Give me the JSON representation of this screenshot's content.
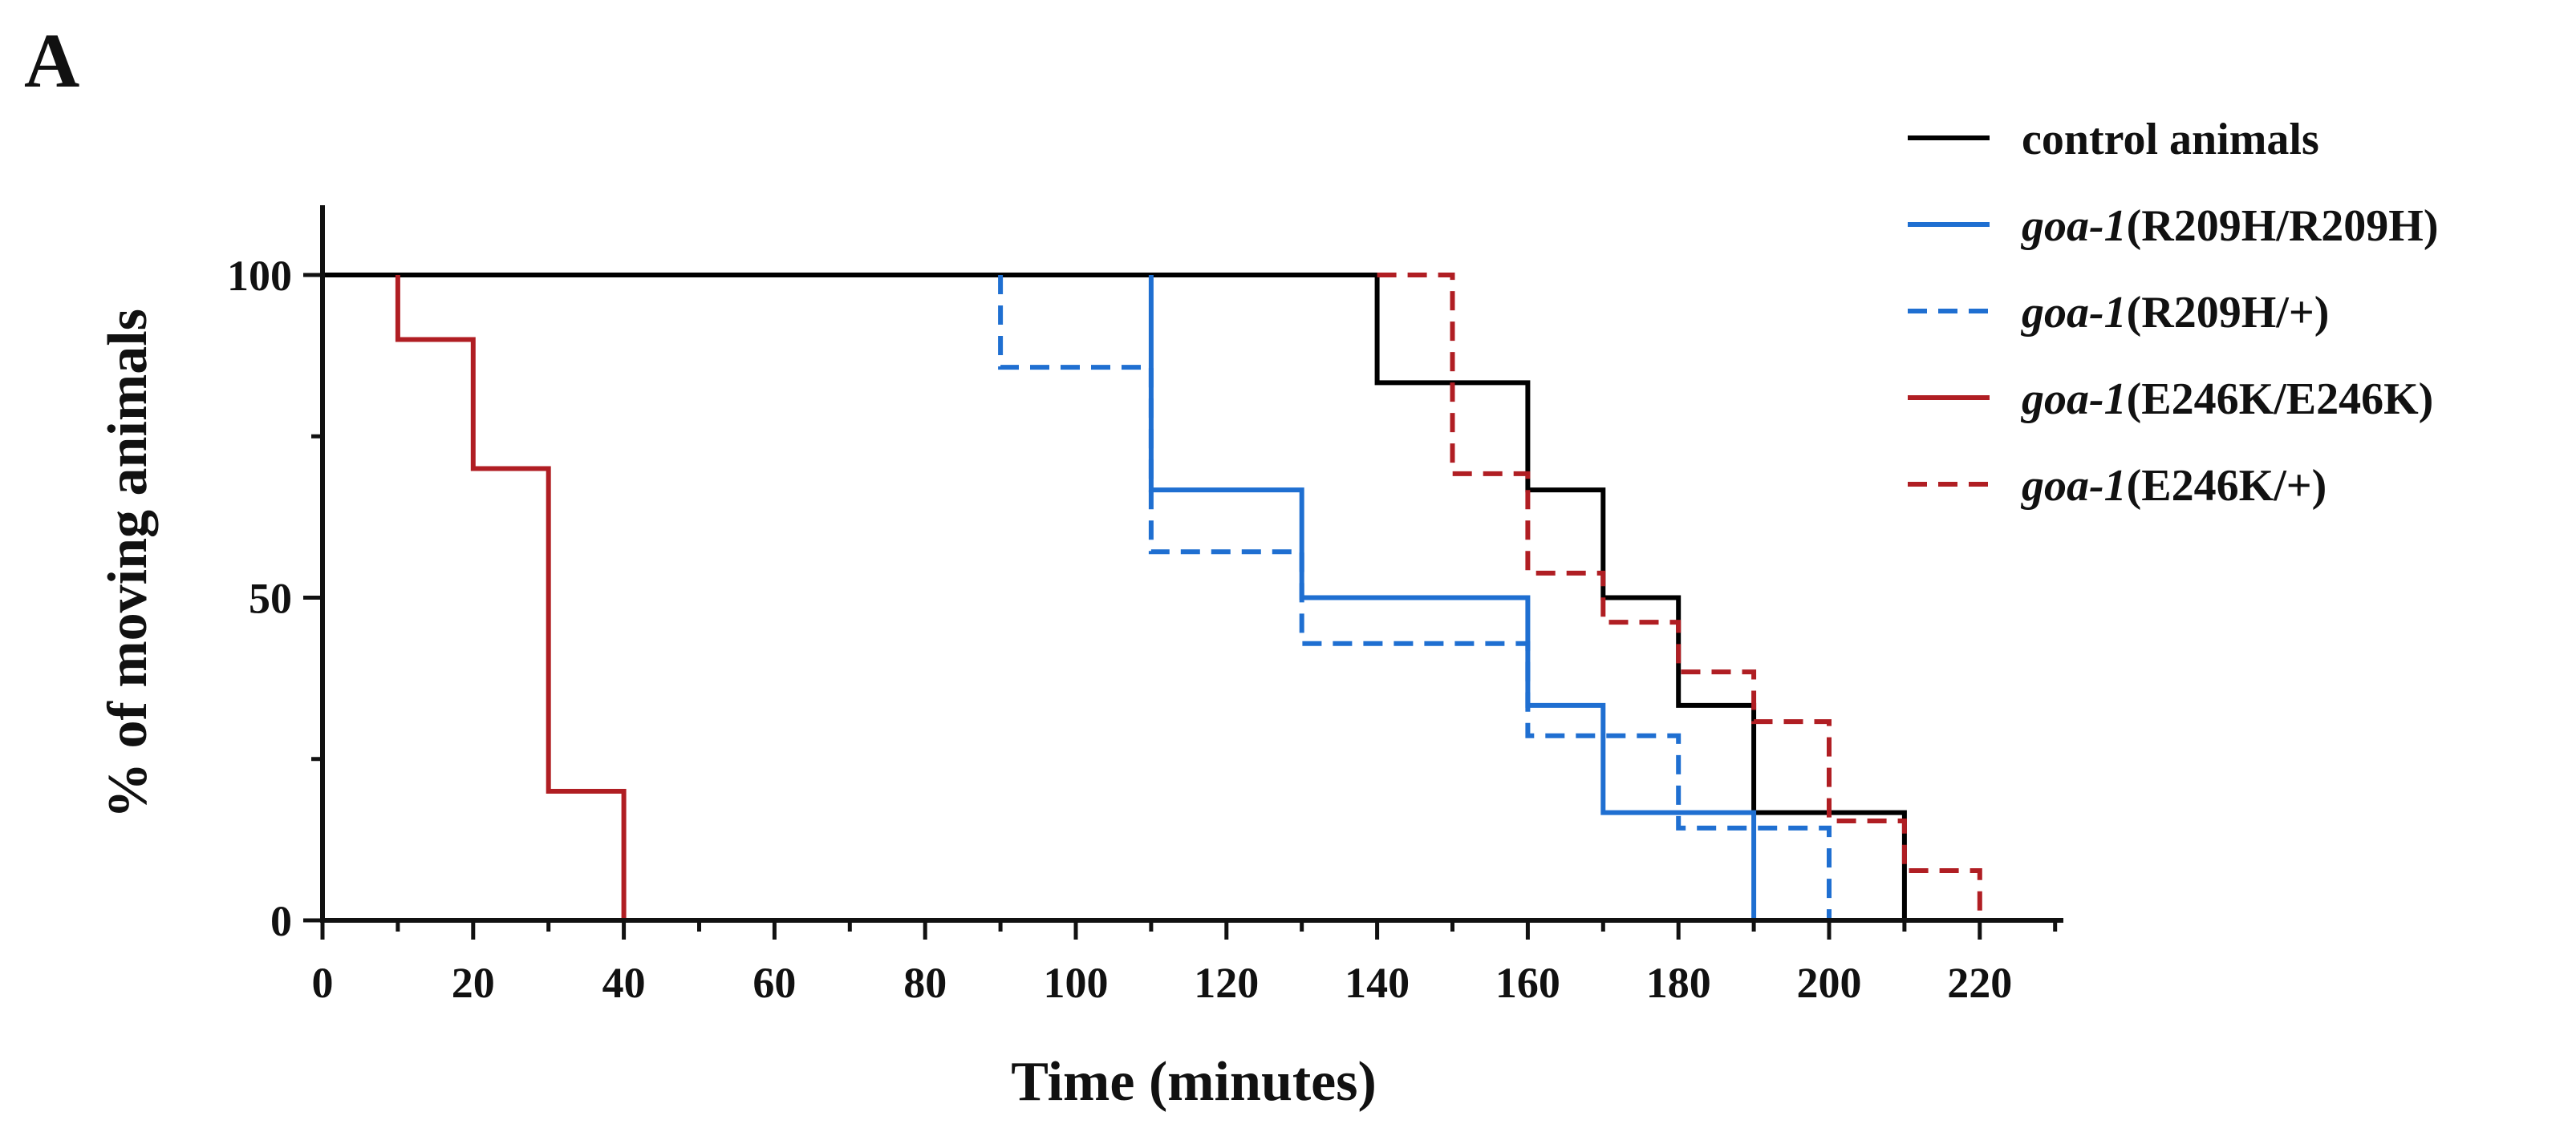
{
  "panel_label": "A",
  "chart_data": {
    "type": "line",
    "subtype": "step",
    "title": "",
    "xlabel": "Time (minutes)",
    "ylabel": "% of moving animals",
    "xlim": [
      0,
      230
    ],
    "ylim": [
      0,
      110
    ],
    "xticks": [
      0,
      20,
      40,
      60,
      80,
      100,
      120,
      140,
      160,
      180,
      200,
      220
    ],
    "xtick_labels": [
      "0",
      "20",
      "40",
      "60",
      "80",
      "100",
      "120",
      "140",
      "160",
      "180",
      "200",
      "220"
    ],
    "xminor_step": 10,
    "yticks": [
      0,
      50,
      100
    ],
    "ytick_labels": [
      "0",
      "50",
      "100"
    ],
    "yminor_step": 25,
    "legend_position": "top-right",
    "series": [
      {
        "name_italic": "",
        "name_rest": "control animals",
        "color": "#000000",
        "dashed": false,
        "points": [
          [
            0,
            100
          ],
          [
            140,
            100
          ],
          [
            140,
            83.3
          ],
          [
            160,
            83.3
          ],
          [
            160,
            66.7
          ],
          [
            170,
            66.7
          ],
          [
            170,
            50
          ],
          [
            180,
            50
          ],
          [
            180,
            33.3
          ],
          [
            190,
            33.3
          ],
          [
            190,
            16.7
          ],
          [
            210,
            16.7
          ],
          [
            210,
            0
          ]
        ]
      },
      {
        "name_italic": "goa-1",
        "name_rest": "(R209H/R209H)",
        "color": "#1f6fd1",
        "dashed": false,
        "points": [
          [
            110,
            100
          ],
          [
            110,
            66.7
          ],
          [
            130,
            66.7
          ],
          [
            130,
            50
          ],
          [
            160,
            50
          ],
          [
            160,
            33.3
          ],
          [
            170,
            33.3
          ],
          [
            170,
            16.7
          ],
          [
            190,
            16.7
          ],
          [
            190,
            0
          ]
        ]
      },
      {
        "name_italic": "goa-1",
        "name_rest": "(R209H/+)",
        "color": "#1f6fd1",
        "dashed": true,
        "points": [
          [
            90,
            100
          ],
          [
            90,
            85.7
          ],
          [
            110,
            85.7
          ],
          [
            110,
            57.1
          ],
          [
            130,
            57.1
          ],
          [
            130,
            42.9
          ],
          [
            160,
            42.9
          ],
          [
            160,
            28.6
          ],
          [
            180,
            28.6
          ],
          [
            180,
            14.3
          ],
          [
            200,
            14.3
          ],
          [
            200,
            0
          ]
        ]
      },
      {
        "name_italic": "goa-1",
        "name_rest": "(E246K/E246K)",
        "color": "#b01e23",
        "dashed": false,
        "points": [
          [
            10,
            100
          ],
          [
            10,
            90
          ],
          [
            20,
            90
          ],
          [
            20,
            70
          ],
          [
            30,
            70
          ],
          [
            30,
            20
          ],
          [
            40,
            20
          ],
          [
            40,
            0
          ]
        ]
      },
      {
        "name_italic": "goa-1",
        "name_rest": "(E246K/+)",
        "color": "#b01e23",
        "dashed": true,
        "points": [
          [
            140,
            100
          ],
          [
            150,
            100
          ],
          [
            150,
            69.2
          ],
          [
            160,
            69.2
          ],
          [
            160,
            53.8
          ],
          [
            170,
            53.8
          ],
          [
            170,
            46.2
          ],
          [
            180,
            46.2
          ],
          [
            180,
            38.5
          ],
          [
            190,
            38.5
          ],
          [
            190,
            30.8
          ],
          [
            200,
            30.8
          ],
          [
            200,
            15.4
          ],
          [
            210,
            15.4
          ],
          [
            210,
            7.7
          ],
          [
            220,
            7.7
          ],
          [
            220,
            0
          ]
        ]
      }
    ]
  }
}
